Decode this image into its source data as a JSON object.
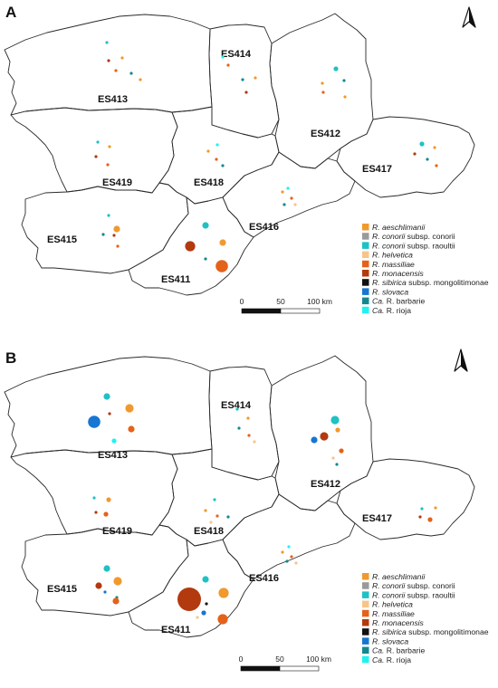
{
  "legend": {
    "items": [
      {
        "key": "aeschlimanii",
        "prefix": "R.",
        "name": "aeschlimanii",
        "suffix": "",
        "color": "#f0992e"
      },
      {
        "key": "conorii",
        "prefix": "R.",
        "name": "conorii",
        "suffix": " subsp. conorii",
        "color": "#9a9a9a"
      },
      {
        "key": "raoultii",
        "prefix": "R.",
        "name": "conorii",
        "suffix": " subsp. raoultii",
        "color": "#1fc1c4"
      },
      {
        "key": "helvetica",
        "prefix": "R.",
        "name": "helvetica",
        "suffix": "",
        "color": "#f7c58b"
      },
      {
        "key": "massiliae",
        "prefix": "R.",
        "name": "massiliae",
        "suffix": "",
        "color": "#e4621a"
      },
      {
        "key": "monacensis",
        "prefix": "R.",
        "name": "monacensis",
        "suffix": "",
        "color": "#b23a0e"
      },
      {
        "key": "sibirica",
        "prefix": "R.",
        "name": "sibirica",
        "suffix": " subsp. mongolitimonae",
        "color": "#111111"
      },
      {
        "key": "slovaca",
        "prefix": "R.",
        "name": "slovaca",
        "suffix": "",
        "color": "#1676d1"
      },
      {
        "key": "barbarie",
        "prefix": "Ca.",
        "name": "",
        "suffix": " R. barbarie",
        "color": "#13898f"
      },
      {
        "key": "rioja",
        "prefix": "Ca.",
        "name": "",
        "suffix": " R. rioja",
        "color": "#21f1f2"
      }
    ]
  },
  "scale": {
    "labels": [
      "0",
      "50",
      "100 km"
    ]
  },
  "north": {
    "label": "N"
  },
  "panels": [
    {
      "letter": "A",
      "regions": [
        "ES413",
        "ES414",
        "ES412",
        "ES419",
        "ES418",
        "ES417",
        "ES415",
        "ES416",
        "ES411"
      ],
      "points": [
        {
          "region": "ES413",
          "species": "raoultii",
          "size": 1
        },
        {
          "region": "ES413",
          "species": "aeschlimanii",
          "size": 1
        },
        {
          "region": "ES413",
          "species": "monacensis",
          "size": 1
        },
        {
          "region": "ES413",
          "species": "massiliae",
          "size": 1
        },
        {
          "region": "ES413",
          "species": "barbarie",
          "size": 1
        },
        {
          "region": "ES413",
          "species": "aeschlimanii",
          "size": 1
        },
        {
          "region": "ES414",
          "species": "rioja",
          "size": 1
        },
        {
          "region": "ES414",
          "species": "massiliae",
          "size": 1
        },
        {
          "region": "ES414",
          "species": "barbarie",
          "size": 1
        },
        {
          "region": "ES414",
          "species": "aeschlimanii",
          "size": 1
        },
        {
          "region": "ES414",
          "species": "monacensis",
          "size": 1
        },
        {
          "region": "ES412",
          "species": "raoultii",
          "size": 2
        },
        {
          "region": "ES412",
          "species": "aeschlimanii",
          "size": 1
        },
        {
          "region": "ES412",
          "species": "barbarie",
          "size": 1
        },
        {
          "region": "ES412",
          "species": "massiliae",
          "size": 1
        },
        {
          "region": "ES412",
          "species": "aeschlimanii",
          "size": 1
        },
        {
          "region": "ES419",
          "species": "raoultii",
          "size": 1
        },
        {
          "region": "ES419",
          "species": "aeschlimanii",
          "size": 1
        },
        {
          "region": "ES419",
          "species": "monacensis",
          "size": 1
        },
        {
          "region": "ES419",
          "species": "massiliae",
          "size": 1
        },
        {
          "region": "ES418",
          "species": "rioja",
          "size": 1
        },
        {
          "region": "ES418",
          "species": "aeschlimanii",
          "size": 1
        },
        {
          "region": "ES418",
          "species": "massiliae",
          "size": 1
        },
        {
          "region": "ES418",
          "species": "barbarie",
          "size": 1
        },
        {
          "region": "ES417",
          "species": "raoultii",
          "size": 2
        },
        {
          "region": "ES417",
          "species": "aeschlimanii",
          "size": 1
        },
        {
          "region": "ES417",
          "species": "monacensis",
          "size": 1
        },
        {
          "region": "ES417",
          "species": "barbarie",
          "size": 1
        },
        {
          "region": "ES417",
          "species": "massiliae",
          "size": 1
        },
        {
          "region": "ES415",
          "species": "raoultii",
          "size": 1
        },
        {
          "region": "ES415",
          "species": "aeschlimanii",
          "size": 3
        },
        {
          "region": "ES415",
          "species": "barbarie",
          "size": 1
        },
        {
          "region": "ES415",
          "species": "monacensis",
          "size": 1
        },
        {
          "region": "ES415",
          "species": "massiliae",
          "size": 1
        },
        {
          "region": "ES416",
          "species": "rioja",
          "size": 1
        },
        {
          "region": "ES416",
          "species": "aeschlimanii",
          "size": 1
        },
        {
          "region": "ES416",
          "species": "massiliae",
          "size": 1
        },
        {
          "region": "ES416",
          "species": "barbarie",
          "size": 1
        },
        {
          "region": "ES416",
          "species": "helvetica",
          "size": 1
        },
        {
          "region": "ES411",
          "species": "raoultii",
          "size": 3
        },
        {
          "region": "ES411",
          "species": "monacensis",
          "size": 5
        },
        {
          "region": "ES411",
          "species": "aeschlimanii",
          "size": 3
        },
        {
          "region": "ES411",
          "species": "massiliae",
          "size": 6
        },
        {
          "region": "ES411",
          "species": "barbarie",
          "size": 1
        }
      ]
    },
    {
      "letter": "B",
      "regions": [
        "ES413",
        "ES414",
        "ES412",
        "ES419",
        "ES418",
        "ES417",
        "ES415",
        "ES416",
        "ES411"
      ],
      "points": [
        {
          "region": "ES413",
          "species": "raoultii",
          "size": 3
        },
        {
          "region": "ES413",
          "species": "slovaca",
          "size": 6
        },
        {
          "region": "ES413",
          "species": "monacensis",
          "size": 1
        },
        {
          "region": "ES413",
          "species": "aeschlimanii",
          "size": 4
        },
        {
          "region": "ES413",
          "species": "massiliae",
          "size": 3
        },
        {
          "region": "ES413",
          "species": "rioja",
          "size": 2
        },
        {
          "region": "ES414",
          "species": "raoultii",
          "size": 1
        },
        {
          "region": "ES414",
          "species": "aeschlimanii",
          "size": 1
        },
        {
          "region": "ES414",
          "species": "barbarie",
          "size": 1
        },
        {
          "region": "ES414",
          "species": "massiliae",
          "size": 1
        },
        {
          "region": "ES414",
          "species": "helvetica",
          "size": 1
        },
        {
          "region": "ES412",
          "species": "raoultii",
          "size": 4
        },
        {
          "region": "ES412",
          "species": "monacensis",
          "size": 4
        },
        {
          "region": "ES412",
          "species": "slovaca",
          "size": 3
        },
        {
          "region": "ES412",
          "species": "aeschlimanii",
          "size": 2
        },
        {
          "region": "ES412",
          "species": "massiliae",
          "size": 2
        },
        {
          "region": "ES412",
          "species": "helvetica",
          "size": 1
        },
        {
          "region": "ES412",
          "species": "barbarie",
          "size": 1
        },
        {
          "region": "ES419",
          "species": "raoultii",
          "size": 1
        },
        {
          "region": "ES419",
          "species": "aeschlimanii",
          "size": 2
        },
        {
          "region": "ES419",
          "species": "monacensis",
          "size": 1
        },
        {
          "region": "ES419",
          "species": "massiliae",
          "size": 2
        },
        {
          "region": "ES418",
          "species": "raoultii",
          "size": 1
        },
        {
          "region": "ES418",
          "species": "aeschlimanii",
          "size": 1
        },
        {
          "region": "ES418",
          "species": "massiliae",
          "size": 1
        },
        {
          "region": "ES418",
          "species": "barbarie",
          "size": 1
        },
        {
          "region": "ES418",
          "species": "helvetica",
          "size": 1
        },
        {
          "region": "ES417",
          "species": "raoultii",
          "size": 1
        },
        {
          "region": "ES417",
          "species": "aeschlimanii",
          "size": 1
        },
        {
          "region": "ES417",
          "species": "monacensis",
          "size": 1
        },
        {
          "region": "ES417",
          "species": "massiliae",
          "size": 2
        },
        {
          "region": "ES415",
          "species": "raoultii",
          "size": 3
        },
        {
          "region": "ES415",
          "species": "aeschlimanii",
          "size": 4
        },
        {
          "region": "ES415",
          "species": "monacensis",
          "size": 3
        },
        {
          "region": "ES415",
          "species": "slovaca",
          "size": 1
        },
        {
          "region": "ES415",
          "species": "barbarie",
          "size": 1
        },
        {
          "region": "ES415",
          "species": "massiliae",
          "size": 3
        },
        {
          "region": "ES416",
          "species": "rioja",
          "size": 1
        },
        {
          "region": "ES416",
          "species": "aeschlimanii",
          "size": 1
        },
        {
          "region": "ES416",
          "species": "massiliae",
          "size": 1
        },
        {
          "region": "ES416",
          "species": "barbarie",
          "size": 1
        },
        {
          "region": "ES416",
          "species": "helvetica",
          "size": 1
        },
        {
          "region": "ES411",
          "species": "raoultii",
          "size": 3
        },
        {
          "region": "ES411",
          "species": "monacensis",
          "size": 9
        },
        {
          "region": "ES411",
          "species": "aeschlimanii",
          "size": 5
        },
        {
          "region": "ES411",
          "species": "sibirica",
          "size": 1
        },
        {
          "region": "ES411",
          "species": "slovaca",
          "size": 2
        },
        {
          "region": "ES411",
          "species": "massiliae",
          "size": 5
        },
        {
          "region": "ES411",
          "species": "helvetica",
          "size": 1
        }
      ]
    }
  ]
}
